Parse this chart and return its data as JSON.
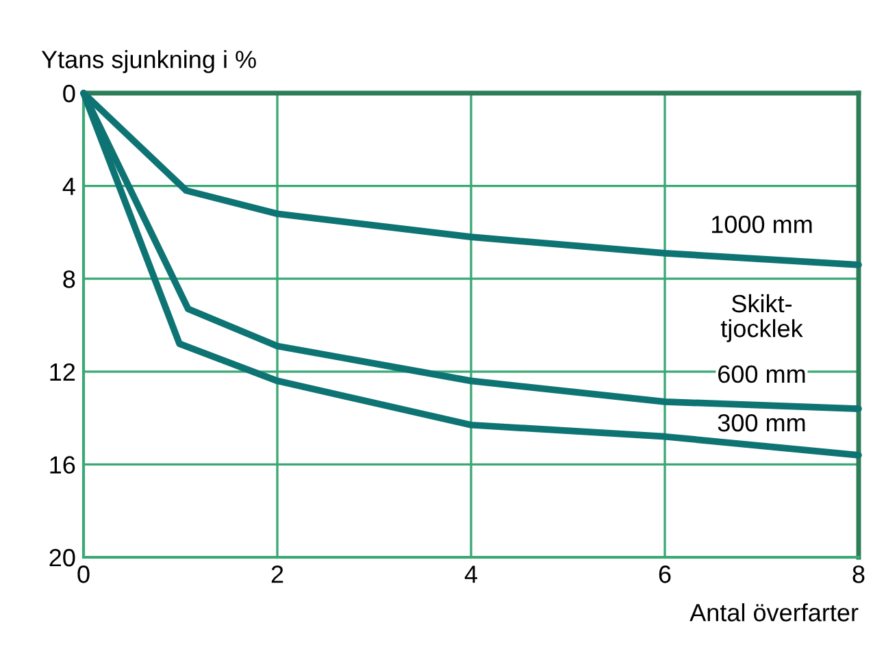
{
  "chart_data": {
    "type": "line",
    "ylabel": "Ytans sjunkning i %",
    "xlabel": "Antal överfarter",
    "legend_title": "Skikt-\ntjocklek",
    "xlim": [
      0,
      8
    ],
    "xticks": [
      0,
      2,
      4,
      6,
      8
    ],
    "ylim": [
      20,
      0
    ],
    "yticks": [
      0,
      4,
      8,
      12,
      16,
      20
    ],
    "grid": true,
    "marker": "none",
    "line_style": "solid",
    "series": [
      {
        "name": "1000 mm",
        "color": "#0e7473",
        "x": [
          0,
          1.06,
          2,
          4,
          6,
          8
        ],
        "values": [
          0,
          4.2,
          5.2,
          6.2,
          6.9,
          7.4
        ]
      },
      {
        "name": "600 mm",
        "color": "#0e7473",
        "x": [
          0,
          1.08,
          2,
          4,
          6,
          8
        ],
        "values": [
          0,
          9.3,
          10.9,
          12.4,
          13.3,
          13.6
        ]
      },
      {
        "name": "300 mm",
        "color": "#0e7473",
        "x": [
          0,
          0.99,
          2,
          4,
          6,
          8
        ],
        "values": [
          0,
          10.8,
          12.4,
          14.3,
          14.8,
          15.6
        ]
      }
    ]
  }
}
